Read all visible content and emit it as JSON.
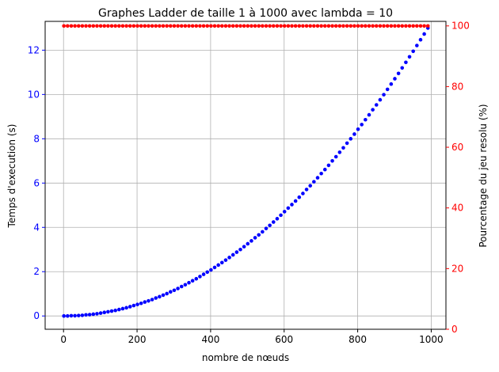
{
  "chart_data": {
    "type": "scatter",
    "title": "Graphes Ladder de taille 1 à 1000 avec lambda = 10",
    "xlabel": "nombre de nœuds",
    "ylabel_left": "Temps d'execution (s)",
    "ylabel_right": "Pourcentage du jeu resolu (%)",
    "xlim": [
      -50,
      1040
    ],
    "ylim_left": [
      -0.6,
      13.3
    ],
    "ylim_right": [
      0,
      101.5
    ],
    "x_ticks": [
      0,
      200,
      400,
      600,
      800,
      1000
    ],
    "y_ticks_left": [
      0,
      2,
      4,
      6,
      8,
      10,
      12
    ],
    "y_ticks_right": [
      0,
      20,
      40,
      60,
      80,
      100
    ],
    "grid": true,
    "colors": {
      "left": "#0000ff",
      "right": "#ff0000"
    },
    "series": [
      {
        "axis": "left",
        "color": "#0000ff",
        "x": [
          1,
          11,
          21,
          31,
          41,
          51,
          61,
          71,
          81,
          91,
          101,
          111,
          121,
          131,
          141,
          151,
          161,
          171,
          181,
          191,
          201,
          211,
          221,
          231,
          241,
          251,
          261,
          271,
          281,
          291,
          301,
          311,
          321,
          331,
          341,
          351,
          361,
          371,
          381,
          391,
          401,
          411,
          421,
          431,
          441,
          451,
          461,
          471,
          481,
          491,
          501,
          511,
          521,
          531,
          541,
          551,
          561,
          571,
          581,
          591,
          601,
          611,
          621,
          631,
          641,
          651,
          661,
          671,
          681,
          691,
          701,
          711,
          721,
          731,
          741,
          751,
          761,
          771,
          781,
          791,
          801,
          811,
          821,
          831,
          841,
          851,
          861,
          871,
          881,
          891,
          901,
          911,
          921,
          931,
          941,
          951,
          961,
          971,
          981,
          991
        ],
        "y": [
          0.0,
          0.0,
          0.01,
          0.01,
          0.02,
          0.03,
          0.05,
          0.06,
          0.08,
          0.1,
          0.13,
          0.16,
          0.19,
          0.22,
          0.25,
          0.29,
          0.33,
          0.37,
          0.42,
          0.47,
          0.52,
          0.57,
          0.63,
          0.68,
          0.74,
          0.81,
          0.87,
          0.94,
          1.01,
          1.09,
          1.16,
          1.24,
          1.33,
          1.41,
          1.5,
          1.59,
          1.68,
          1.78,
          1.88,
          1.98,
          2.08,
          2.19,
          2.3,
          2.41,
          2.52,
          2.64,
          2.76,
          2.88,
          3.0,
          3.13,
          3.26,
          3.39,
          3.53,
          3.66,
          3.8,
          3.95,
          4.09,
          4.24,
          4.39,
          4.55,
          4.71,
          4.87,
          5.03,
          5.19,
          5.36,
          5.53,
          5.71,
          5.88,
          6.06,
          6.24,
          6.43,
          6.61,
          6.8,
          7.0,
          7.19,
          7.39,
          7.59,
          7.8,
          8.0,
          8.21,
          8.43,
          8.64,
          8.86,
          9.08,
          9.31,
          9.53,
          9.76,
          9.99,
          10.23,
          10.47,
          10.71,
          10.95,
          11.2,
          11.45,
          11.7,
          11.95,
          12.21,
          12.47,
          12.73,
          13.0
        ]
      },
      {
        "axis": "right",
        "color": "#ff0000",
        "x": [
          1,
          11,
          21,
          31,
          41,
          51,
          61,
          71,
          81,
          91,
          101,
          111,
          121,
          131,
          141,
          151,
          161,
          171,
          181,
          191,
          201,
          211,
          221,
          231,
          241,
          251,
          261,
          271,
          281,
          291,
          301,
          311,
          321,
          331,
          341,
          351,
          361,
          371,
          381,
          391,
          401,
          411,
          421,
          431,
          441,
          451,
          461,
          471,
          481,
          491,
          501,
          511,
          521,
          531,
          541,
          551,
          561,
          571,
          581,
          591,
          601,
          611,
          621,
          631,
          641,
          651,
          661,
          671,
          681,
          691,
          701,
          711,
          721,
          731,
          741,
          751,
          761,
          771,
          781,
          791,
          801,
          811,
          821,
          831,
          841,
          851,
          861,
          871,
          881,
          891,
          901,
          911,
          921,
          931,
          941,
          951,
          961,
          971,
          981,
          991
        ],
        "y": [
          100,
          100,
          100,
          100,
          100,
          100,
          100,
          100,
          100,
          100,
          100,
          100,
          100,
          100,
          100,
          100,
          100,
          100,
          100,
          100,
          100,
          100,
          100,
          100,
          100,
          100,
          100,
          100,
          100,
          100,
          100,
          100,
          100,
          100,
          100,
          100,
          100,
          100,
          100,
          100,
          100,
          100,
          100,
          100,
          100,
          100,
          100,
          100,
          100,
          100,
          100,
          100,
          100,
          100,
          100,
          100,
          100,
          100,
          100,
          100,
          100,
          100,
          100,
          100,
          100,
          100,
          100,
          100,
          100,
          100,
          100,
          100,
          100,
          100,
          100,
          100,
          100,
          100,
          100,
          100,
          100,
          100,
          100,
          100,
          100,
          100,
          100,
          100,
          100,
          100,
          100,
          100,
          100,
          100,
          100,
          100,
          100,
          100,
          100,
          100
        ]
      }
    ]
  }
}
